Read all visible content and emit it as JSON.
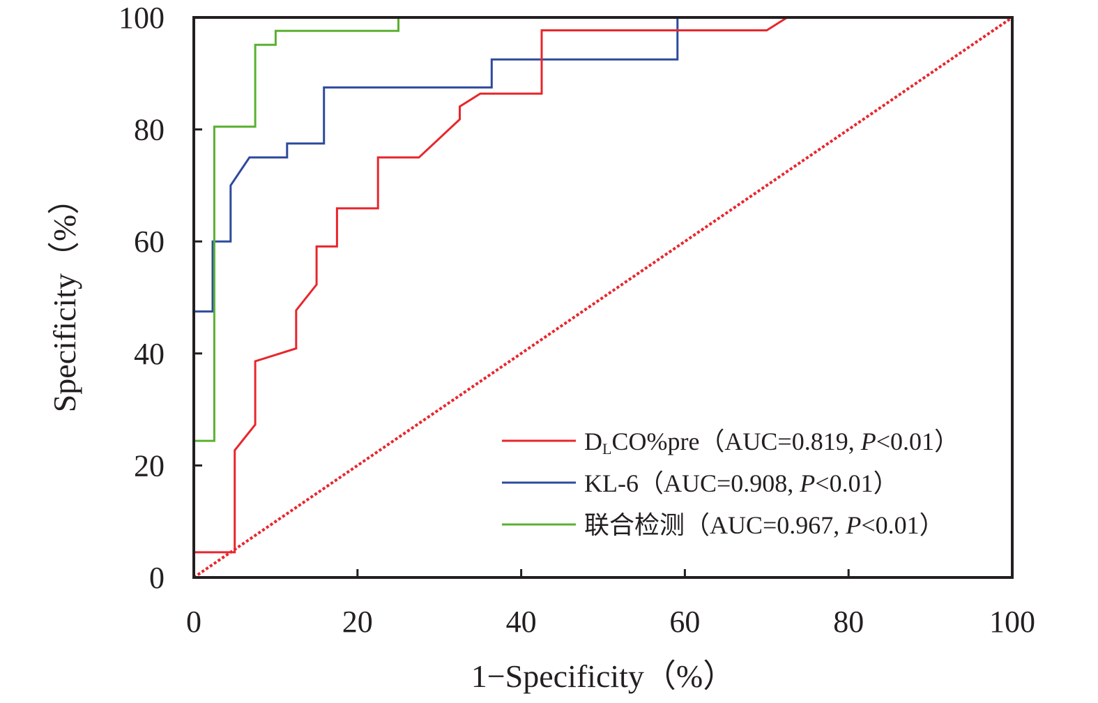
{
  "chart_data": {
    "type": "line",
    "title": "",
    "xlabel": "1−Specificity（%）",
    "ylabel": "Specificity（%）",
    "xlim": [
      0,
      100
    ],
    "ylim": [
      0,
      100
    ],
    "x_ticks": [
      0,
      20,
      40,
      60,
      80,
      100
    ],
    "y_ticks": [
      0,
      20,
      40,
      60,
      80,
      100
    ],
    "grid": false,
    "legend_position": "bottom-right",
    "series": [
      {
        "name": "DLCO%pre",
        "legend_main": "D",
        "legend_sub": "L",
        "legend_rest": "CO%pre（AUC=0.819, ",
        "legend_p": "P",
        "legend_tail": "<0.01）",
        "color": "#e8262c",
        "x": [
          0,
          0,
          5,
          5,
          7.5,
          7.5,
          12.5,
          12.5,
          15,
          15,
          17.5,
          17.5,
          22.5,
          22.5,
          27.5,
          32.5,
          32.5,
          35,
          42.5,
          42.5,
          70,
          72.5,
          100
        ],
        "y": [
          0,
          4.5,
          4.5,
          22.7,
          27.3,
          38.6,
          40.9,
          47.7,
          52.3,
          59.1,
          59.1,
          65.9,
          65.9,
          75,
          75,
          81.8,
          84.1,
          86.4,
          86.4,
          97.7,
          97.7,
          100,
          100
        ]
      },
      {
        "name": "KL-6",
        "legend_main": "KL-6（AUC=0.908, ",
        "legend_p": "P",
        "legend_tail": "<0.01）",
        "color": "#2e4a9e",
        "x": [
          0,
          0,
          2.3,
          2.3,
          4.5,
          4.5,
          6.8,
          11.4,
          11.4,
          15.9,
          15.9,
          36.4,
          36.4,
          59.1,
          59.1,
          100
        ],
        "y": [
          0,
          47.5,
          47.5,
          60,
          60,
          70,
          75,
          75,
          77.5,
          77.5,
          87.5,
          87.5,
          92.5,
          92.5,
          100,
          100
        ]
      },
      {
        "name": "联合检测",
        "legend_main": "联合检测（AUC=0.967, ",
        "legend_p": "P",
        "legend_tail": "<0.01）",
        "color": "#5ab031",
        "x": [
          0,
          0,
          2.5,
          2.5,
          7.5,
          7.5,
          10,
          10,
          25,
          25,
          100
        ],
        "y": [
          0,
          24.4,
          24.4,
          80.5,
          80.5,
          95.1,
          95.1,
          97.6,
          97.6,
          100,
          100
        ]
      },
      {
        "name": "reference",
        "color": "#e8262c",
        "dashed": true,
        "x": [
          0,
          100
        ],
        "y": [
          0,
          100
        ]
      }
    ]
  }
}
